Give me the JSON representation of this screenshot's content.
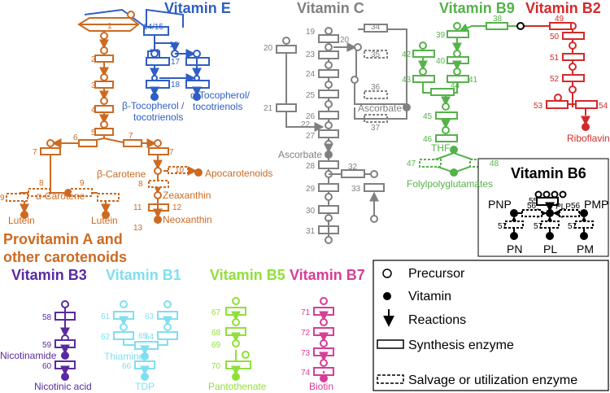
{
  "colors": {
    "vitE": "#2f5ec4",
    "vitA": "#cc6a22",
    "vitC": "#808080",
    "vitB9": "#55b24a",
    "vitB2": "#d42a2a",
    "vitB6": "#000000",
    "vitB3": "#5a2aa0",
    "vitB1": "#7fdff0",
    "vitB5": "#8fe03a",
    "vitB7": "#d63d97"
  },
  "panels": {
    "vitamin_e": {
      "title": "Vitamin E",
      "enzymes": [
        "1",
        "14/15",
        "16",
        "17",
        "18"
      ],
      "products": [
        "β-Tocopherol /",
        "tocotrienols",
        "α-Tocopherol/",
        "tocotrienols"
      ]
    },
    "provitamin_a": {
      "title_line1": "Provitamin A and",
      "title_line2": "other carotenoids",
      "enzymes": [
        "2",
        "3",
        "4",
        "5",
        "6",
        "7",
        "7",
        "7",
        "8",
        "9",
        "9",
        "10",
        "8",
        "11",
        "12",
        "13"
      ],
      "compounds": [
        "β-Carotene",
        "α-Carotene",
        "Apocarotenoids",
        "Zeaxanthin",
        "Neoxanthin",
        "Lutein",
        "Lutein"
      ]
    },
    "vitamin_c": {
      "title": "Vitamin C",
      "enzymes": [
        "19",
        "20",
        "23",
        "20",
        "24",
        "21",
        "25",
        "26",
        "22",
        "27",
        "34",
        "35",
        "36",
        "37",
        "28",
        "29",
        "32",
        "33",
        "30",
        "31"
      ],
      "compounds": [
        "Ascorbate",
        "Ascorbate"
      ]
    },
    "vitamin_b9": {
      "title": "Vitamin B9",
      "enzymes": [
        "38",
        "39",
        "40",
        "41",
        "42",
        "43",
        "44",
        "45",
        "46",
        "47",
        "48"
      ],
      "compounds": [
        "THF",
        "Folylpolyglutamates"
      ]
    },
    "vitamin_b2": {
      "title": "Vitamin B2",
      "enzymes": [
        "49",
        "50",
        "51",
        "52",
        "53",
        "54"
      ],
      "compounds": [
        "Riboflavin"
      ]
    },
    "vitamin_b6": {
      "title": "Vitamin B6",
      "enzymes": [
        "55",
        "56",
        "56",
        "57",
        "57",
        "57"
      ],
      "compounds": [
        "PNP",
        "PLP",
        "PMP",
        "PN",
        "PL",
        "PM"
      ]
    },
    "vitamin_b3": {
      "title": "Vitamin B3",
      "enzymes": [
        "58",
        "59",
        "60"
      ],
      "compounds": [
        "Nicotinamide",
        "Nicotinic acid"
      ]
    },
    "vitamin_b1": {
      "title": "Vitamin B1",
      "enzymes": [
        "61",
        "62",
        "63",
        "64",
        "65",
        "66"
      ],
      "compounds": [
        "Thiamine",
        "TDP"
      ]
    },
    "vitamin_b5": {
      "title": "Vitamin B5",
      "enzymes": [
        "67",
        "68",
        "69",
        "70"
      ],
      "compounds": [
        "Pantothenate"
      ]
    },
    "vitamin_b7": {
      "title": "Vitamin B7",
      "enzymes": [
        "71",
        "72",
        "73",
        "74"
      ],
      "compounds": [
        "Biotin"
      ]
    }
  },
  "legend": {
    "items": [
      {
        "icon": "open-circle-icon",
        "label": "Precursor"
      },
      {
        "icon": "filled-circle-icon",
        "label": "Vitamin"
      },
      {
        "icon": "arrow-down-icon",
        "label": "Reactions"
      },
      {
        "icon": "solid-rectangle-icon",
        "label": "Synthesis enzyme"
      },
      {
        "icon": "dashed-rectangle-icon",
        "label": "Salvage or utilization enzyme"
      }
    ]
  }
}
